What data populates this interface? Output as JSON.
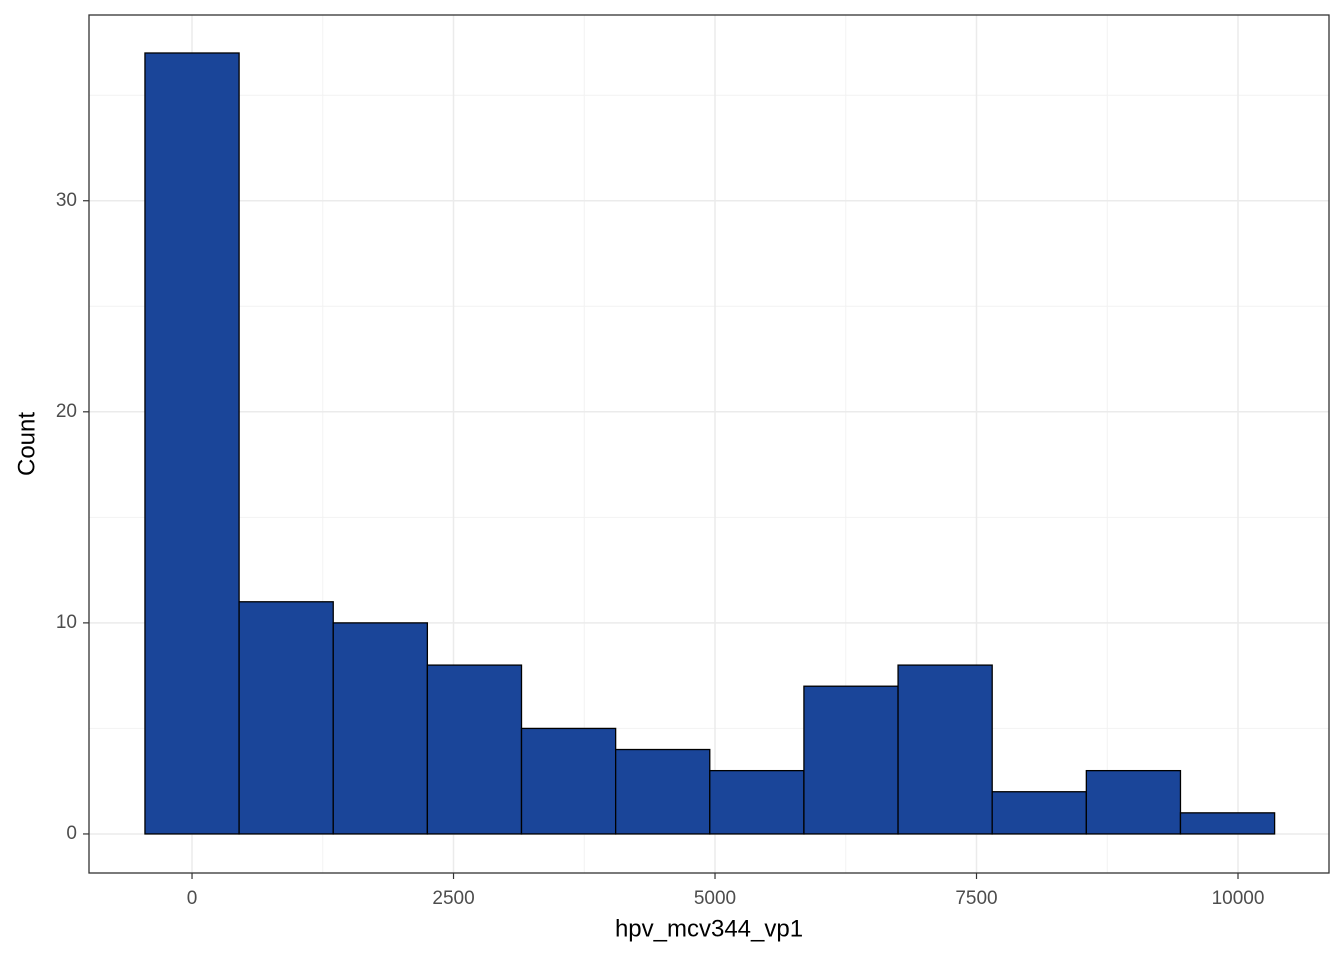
{
  "chart_data": {
    "type": "histogram",
    "x_label": "hpv_mcv344_vp1",
    "y_label": "Count",
    "bins": [
      -450,
      450,
      1350,
      2250,
      3150,
      4050,
      4950,
      5850,
      6750,
      7650,
      8550,
      9450,
      10350
    ],
    "values": [
      37,
      11,
      10,
      8,
      5,
      4,
      3,
      7,
      8,
      2,
      3,
      1
    ],
    "color": "#1a4599",
    "edge_color": "#000000",
    "xlim": [
      -985,
      10870
    ],
    "ylim": [
      -1.85,
      38.8
    ],
    "xticks": [
      0,
      2500,
      5000,
      7500,
      10000
    ],
    "yticks": [
      0,
      10,
      20,
      30
    ],
    "grid": true,
    "minor_grid": true
  }
}
